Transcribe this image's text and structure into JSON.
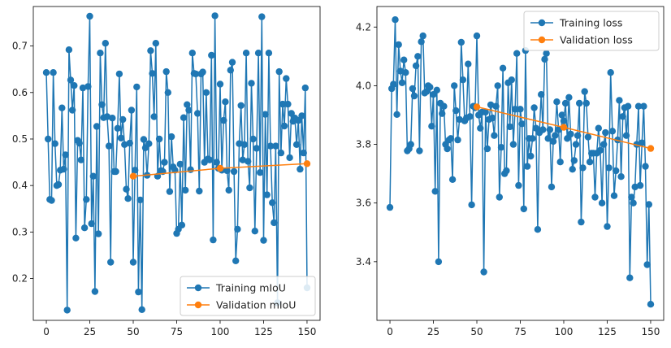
{
  "chart_data": [
    {
      "type": "line",
      "title": "",
      "xlabel": "",
      "ylabel": "",
      "xlim": [
        -7.5,
        157.5
      ],
      "ylim": [
        0.11,
        0.785
      ],
      "xticks": [
        0,
        25,
        50,
        75,
        100,
        125,
        150
      ],
      "xtick_labels": [
        "0",
        "25",
        "50",
        "75",
        "100",
        "125",
        "150"
      ],
      "yticks": [
        0.2,
        0.3,
        0.4,
        0.5,
        0.6,
        0.7
      ],
      "ytick_labels": [
        "0.2",
        "0.3",
        "0.4",
        "0.5",
        "0.6",
        "0.7"
      ],
      "legend_position": "lower-right",
      "series": [
        {
          "name": "Training mIoU",
          "color": "#1f77b4",
          "x": [
            0,
            1,
            2,
            3,
            4,
            5,
            6,
            7,
            8,
            9,
            10,
            11,
            12,
            13,
            14,
            15,
            16,
            17,
            18,
            19,
            20,
            21,
            22,
            23,
            24,
            25,
            26,
            27,
            28,
            29,
            30,
            31,
            32,
            33,
            34,
            35,
            36,
            37,
            38,
            39,
            40,
            41,
            42,
            43,
            44,
            45,
            46,
            47,
            48,
            49,
            50,
            51,
            52,
            53,
            54,
            55,
            56,
            57,
            58,
            59,
            60,
            61,
            62,
            63,
            64,
            65,
            66,
            67,
            68,
            69,
            70,
            71,
            72,
            73,
            74,
            75,
            76,
            77,
            78,
            79,
            80,
            81,
            82,
            83,
            84,
            85,
            86,
            87,
            88,
            89,
            90,
            91,
            92,
            93,
            94,
            95,
            96,
            97,
            98,
            99,
            100,
            101,
            102,
            103,
            104,
            105,
            106,
            107,
            108,
            109,
            110,
            111,
            112,
            113,
            114,
            115,
            116,
            117,
            118,
            119,
            120,
            121,
            122,
            123,
            124,
            125,
            126,
            127,
            128,
            129,
            130,
            131,
            132,
            133,
            134,
            135,
            136,
            137,
            138,
            139,
            140,
            141,
            142,
            143,
            144,
            145,
            146,
            147,
            148,
            149,
            150
          ],
          "values": [
            0.643,
            0.5,
            0.37,
            0.368,
            0.643,
            0.49,
            0.4,
            0.402,
            0.433,
            0.567,
            0.435,
            0.466,
            0.132,
            0.692,
            0.627,
            0.562,
            0.615,
            0.287,
            0.497,
            0.491,
            0.455,
            0.61,
            0.309,
            0.37,
            0.613,
            0.764,
            0.318,
            0.42,
            0.172,
            0.527,
            0.296,
            0.685,
            0.574,
            0.546,
            0.706,
            0.548,
            0.485,
            0.235,
            0.545,
            0.43,
            0.43,
            0.523,
            0.64,
            0.502,
            0.542,
            0.488,
            0.392,
            0.372,
            0.491,
            0.562,
            0.235,
            0.433,
            0.612,
            0.171,
            0.369,
            0.133,
            0.499,
            0.481,
            0.422,
            0.49,
            0.69,
            0.641,
            0.548,
            0.706,
            0.42,
            0.5,
            0.432,
            0.43,
            0.45,
            0.645,
            0.6,
            0.387,
            0.505,
            0.44,
            0.433,
            0.297,
            0.306,
            0.446,
            0.315,
            0.546,
            0.39,
            0.574,
            0.562,
            0.434,
            0.685,
            0.641,
            0.64,
            0.555,
            0.388,
            0.64,
            0.644,
            0.45,
            0.6,
            0.457,
            0.455,
            0.68,
            0.283,
            0.765,
            0.45,
            0.437,
            0.618,
            0.433,
            0.54,
            0.58,
            0.432,
            0.39,
            0.648,
            0.665,
            0.43,
            0.238,
            0.306,
            0.49,
            0.572,
            0.455,
            0.488,
            0.685,
            0.452,
            0.395,
            0.62,
            0.5,
            0.302,
            0.48,
            0.685,
            0.428,
            0.763,
            0.282,
            0.553,
            0.38,
            0.685,
            0.485,
            0.363,
            0.32,
            0.485,
            0.148,
            0.645,
            0.47,
            0.575,
            0.528,
            0.63,
            0.575,
            0.46,
            0.555,
            0.538,
            0.545,
            0.488,
            0.54,
            0.435,
            0.55,
            0.47,
            0.61,
            0.18
          ]
        },
        {
          "name": "Validation mIoU",
          "color": "#ff7f0e",
          "x": [
            50,
            100,
            150
          ],
          "values": [
            0.42,
            0.437,
            0.447
          ]
        }
      ]
    },
    {
      "type": "line",
      "title": "",
      "xlabel": "",
      "ylabel": "",
      "xlim": [
        -7.5,
        157.5
      ],
      "ylim": [
        3.2,
        4.27
      ],
      "xticks": [
        0,
        25,
        50,
        75,
        100,
        125,
        150
      ],
      "xtick_labels": [
        "0",
        "25",
        "50",
        "75",
        "100",
        "125",
        "150"
      ],
      "yticks": [
        3.4,
        3.6,
        3.8,
        4.0,
        4.2
      ],
      "ytick_labels": [
        "3.4",
        "3.6",
        "3.8",
        "4.0",
        "4.2"
      ],
      "legend_position": "upper-right",
      "series": [
        {
          "name": "Training loss",
          "color": "#1f77b4",
          "x": [
            0,
            1,
            2,
            3,
            4,
            5,
            6,
            7,
            8,
            9,
            10,
            11,
            12,
            13,
            14,
            15,
            16,
            17,
            18,
            19,
            20,
            21,
            22,
            23,
            24,
            25,
            26,
            27,
            28,
            29,
            30,
            31,
            32,
            33,
            34,
            35,
            36,
            37,
            38,
            39,
            40,
            41,
            42,
            43,
            44,
            45,
            46,
            47,
            48,
            49,
            50,
            51,
            52,
            53,
            54,
            55,
            56,
            57,
            58,
            59,
            60,
            61,
            62,
            63,
            64,
            65,
            66,
            67,
            68,
            69,
            70,
            71,
            72,
            73,
            74,
            75,
            76,
            77,
            78,
            79,
            80,
            81,
            82,
            83,
            84,
            85,
            86,
            87,
            88,
            89,
            90,
            91,
            92,
            93,
            94,
            95,
            96,
            97,
            98,
            99,
            100,
            101,
            102,
            103,
            104,
            105,
            106,
            107,
            108,
            109,
            110,
            111,
            112,
            113,
            114,
            115,
            116,
            117,
            118,
            119,
            120,
            121,
            122,
            123,
            124,
            125,
            126,
            127,
            128,
            129,
            130,
            131,
            132,
            133,
            134,
            135,
            136,
            137,
            138,
            139,
            140,
            141,
            142,
            143,
            144,
            145,
            146,
            147,
            148,
            149,
            150
          ],
          "values": [
            3.585,
            3.99,
            4.005,
            4.225,
            3.902,
            4.14,
            4.05,
            4.01,
            4.088,
            4.045,
            3.778,
            3.785,
            3.8,
            3.99,
            3.965,
            4.068,
            4.1,
            3.778,
            4.15,
            4.17,
            3.975,
            3.98,
            4.0,
            3.995,
            3.862,
            3.97,
            3.64,
            3.985,
            3.4,
            3.94,
            3.905,
            3.93,
            3.8,
            3.785,
            3.815,
            3.82,
            3.68,
            4.0,
            3.915,
            3.815,
            3.885,
            4.148,
            4.02,
            3.88,
            3.89,
            4.074,
            3.895,
            3.594,
            3.93,
            3.925,
            4.17,
            3.9,
            3.855,
            3.91,
            3.365,
            3.91,
            3.785,
            3.885,
            3.935,
            3.89,
            3.83,
            3.93,
            4.0,
            3.62,
            3.79,
            4.06,
            3.7,
            3.71,
            4.01,
            3.86,
            4.02,
            3.8,
            3.92,
            4.11,
            3.66,
            3.92,
            3.87,
            3.58,
            4.12,
            3.725,
            3.82,
            3.76,
            3.82,
            3.925,
            3.855,
            3.51,
            3.84,
            3.97,
            3.85,
            4.09,
            4.11,
            3.82,
            3.85,
            3.655,
            3.81,
            3.83,
            3.945,
            3.85,
            3.74,
            3.9,
            3.88,
            3.94,
            3.82,
            3.96,
            3.835,
            3.715,
            3.745,
            3.8,
            3.83,
            3.94,
            3.535,
            3.72,
            3.98,
            3.94,
            3.825,
            3.74,
            3.77,
            3.77,
            3.62,
            3.77,
            3.855,
            3.78,
            3.6,
            3.8,
            3.84,
            3.52,
            3.72,
            4.045,
            3.845,
            3.625,
            3.71,
            3.815,
            3.95,
            3.69,
            3.895,
            3.925,
            3.83,
            3.93,
            3.345,
            3.62,
            3.6,
            3.655,
            3.8,
            3.93,
            3.66,
            3.805,
            3.93,
            3.725,
            3.39,
            3.595,
            3.255
          ]
        },
        {
          "name": "Validation loss",
          "color": "#ff7f0e",
          "x": [
            50,
            100,
            150
          ],
          "values": [
            3.928,
            3.858,
            3.786
          ]
        }
      ]
    }
  ]
}
